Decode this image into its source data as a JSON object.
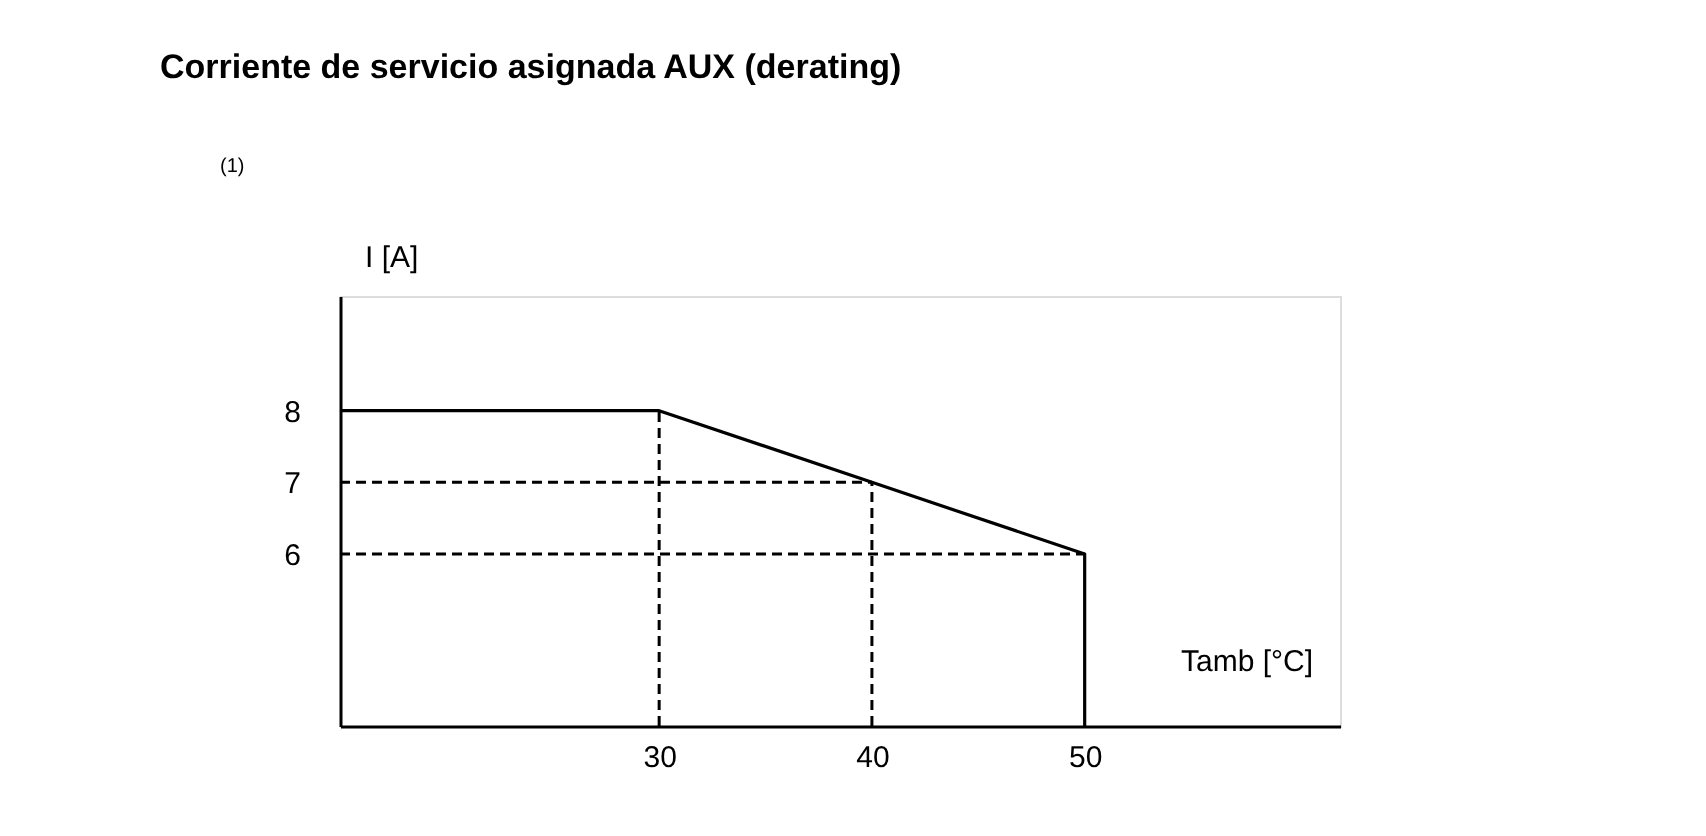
{
  "chart_data": {
    "type": "line",
    "title": "Corriente de servicio asignada AUX (derating)",
    "xlabel": "Tamb [°C]",
    "ylabel": "I [A]",
    "annotations": [
      "(1)"
    ],
    "x": [
      15,
      30,
      40,
      50,
      50
    ],
    "series": [
      {
        "color": "#000000",
        "values": [
          8,
          8,
          7,
          6,
          3.6
        ]
      }
    ],
    "xlim": [
      15,
      62
    ],
    "ylim": [
      3.6,
      9.6
    ],
    "xticks": [
      30,
      40,
      50
    ],
    "yticks": [
      6,
      7,
      8
    ],
    "ref_lines": [
      {
        "axis": "x",
        "value": 30,
        "line_style": "dashed",
        "color": "#000000"
      },
      {
        "axis": "x",
        "value": 40,
        "line_style": "dashed",
        "color": "#000000"
      },
      {
        "axis": "y",
        "value": 7,
        "line_style": "dashed",
        "color": "#000000"
      },
      {
        "axis": "y",
        "value": 6,
        "line_style": "dashed",
        "color": "#000000"
      }
    ],
    "grid": false,
    "legend": false,
    "marker": "none",
    "line_style": "solid"
  }
}
